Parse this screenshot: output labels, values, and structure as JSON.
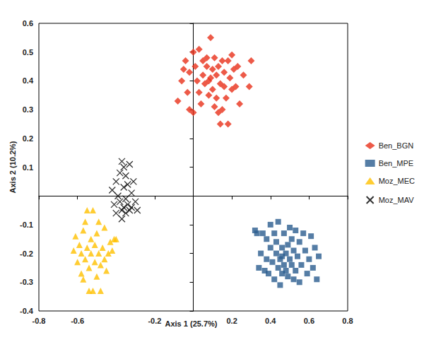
{
  "chart_data": {
    "type": "scatter",
    "xlabel": "Axis 1 (25.7%)",
    "ylabel": "Axis 2 (10.2%)",
    "xlim": [
      -0.8,
      0.8
    ],
    "ylim": [
      -0.4,
      0.6
    ],
    "xticks": [
      -0.8,
      -0.6,
      -0.2,
      0.2,
      0.4,
      0.6,
      0.8
    ],
    "yticks": [
      -0.4,
      -0.3,
      -0.2,
      -0.1,
      0.1,
      0.2,
      0.3,
      0.4,
      0.5,
      0.6
    ],
    "grid": false,
    "legend": "right",
    "series": [
      {
        "name": "Ben_BGN",
        "color": "#e8311a",
        "marker": "diamond",
        "values": [
          [
            -0.08,
            0.33
          ],
          [
            -0.06,
            0.4
          ],
          [
            -0.05,
            0.44
          ],
          [
            -0.04,
            0.47
          ],
          [
            -0.03,
            0.36
          ],
          [
            -0.02,
            0.3
          ],
          [
            -0.02,
            0.43
          ],
          [
            0.0,
            0.5
          ],
          [
            0.0,
            0.29
          ],
          [
            0.01,
            0.45
          ],
          [
            0.02,
            0.4
          ],
          [
            0.03,
            0.51
          ],
          [
            0.03,
            0.36
          ],
          [
            0.04,
            0.32
          ],
          [
            0.05,
            0.47
          ],
          [
            0.05,
            0.42
          ],
          [
            0.06,
            0.39
          ],
          [
            0.07,
            0.48
          ],
          [
            0.07,
            0.45
          ],
          [
            0.08,
            0.4
          ],
          [
            0.08,
            0.35
          ],
          [
            0.09,
            0.55
          ],
          [
            0.1,
            0.44
          ],
          [
            0.1,
            0.37
          ],
          [
            0.11,
            0.48
          ],
          [
            0.12,
            0.42
          ],
          [
            0.12,
            0.34
          ],
          [
            0.13,
            0.45
          ],
          [
            0.13,
            0.29
          ],
          [
            0.14,
            0.39
          ],
          [
            0.14,
            0.25
          ],
          [
            0.15,
            0.47
          ],
          [
            0.15,
            0.3
          ],
          [
            0.16,
            0.43
          ],
          [
            0.16,
            0.38
          ],
          [
            0.17,
            0.34
          ],
          [
            0.18,
            0.47
          ],
          [
            0.18,
            0.25
          ],
          [
            0.19,
            0.41
          ],
          [
            0.2,
            0.49
          ],
          [
            0.2,
            0.37
          ],
          [
            0.21,
            0.44
          ],
          [
            0.22,
            0.38
          ],
          [
            0.23,
            0.45
          ],
          [
            0.24,
            0.32
          ],
          [
            0.26,
            0.42
          ],
          [
            0.29,
            0.38
          ],
          [
            0.3,
            0.47
          ],
          [
            0.09,
            0.41
          ],
          [
            0.11,
            0.31
          ]
        ]
      },
      {
        "name": "Ben_MPE",
        "color": "#2a5d8f",
        "marker": "square",
        "values": [
          [
            0.32,
            -0.12
          ],
          [
            0.33,
            -0.13
          ],
          [
            0.34,
            -0.25
          ],
          [
            0.35,
            -0.2
          ],
          [
            0.36,
            -0.13
          ],
          [
            0.37,
            -0.26
          ],
          [
            0.38,
            -0.15
          ],
          [
            0.38,
            -0.22
          ],
          [
            0.39,
            -0.27
          ],
          [
            0.4,
            -0.1
          ],
          [
            0.4,
            -0.18
          ],
          [
            0.41,
            -0.23
          ],
          [
            0.42,
            -0.13
          ],
          [
            0.42,
            -0.29
          ],
          [
            0.43,
            -0.2
          ],
          [
            0.43,
            -0.16
          ],
          [
            0.44,
            -0.25
          ],
          [
            0.44,
            -0.09
          ],
          [
            0.45,
            -0.22
          ],
          [
            0.45,
            -0.31
          ],
          [
            0.46,
            -0.18
          ],
          [
            0.46,
            -0.27
          ],
          [
            0.47,
            -0.13
          ],
          [
            0.47,
            -0.24
          ],
          [
            0.48,
            -0.2
          ],
          [
            0.48,
            -0.26
          ],
          [
            0.49,
            -0.17
          ],
          [
            0.49,
            -0.28
          ],
          [
            0.5,
            -0.11
          ],
          [
            0.5,
            -0.22
          ],
          [
            0.51,
            -0.24
          ],
          [
            0.51,
            -0.15
          ],
          [
            0.52,
            -0.19
          ],
          [
            0.52,
            -0.29
          ],
          [
            0.53,
            -0.12
          ],
          [
            0.53,
            -0.26
          ],
          [
            0.54,
            -0.21
          ],
          [
            0.55,
            -0.16
          ],
          [
            0.55,
            -0.3
          ],
          [
            0.56,
            -0.24
          ],
          [
            0.57,
            -0.13
          ],
          [
            0.58,
            -0.19
          ],
          [
            0.59,
            -0.27
          ],
          [
            0.6,
            -0.22
          ],
          [
            0.61,
            -0.14
          ],
          [
            0.62,
            -0.25
          ],
          [
            0.63,
            -0.18
          ],
          [
            0.64,
            -0.29
          ],
          [
            0.65,
            -0.21
          ],
          [
            0.46,
            -0.21
          ]
        ]
      },
      {
        "name": "Moz_MEC",
        "color": "#ffc000",
        "marker": "triangle",
        "values": [
          [
            -0.62,
            -0.19
          ],
          [
            -0.61,
            -0.14
          ],
          [
            -0.6,
            -0.23
          ],
          [
            -0.59,
            -0.17
          ],
          [
            -0.58,
            -0.27
          ],
          [
            -0.58,
            -0.2
          ],
          [
            -0.57,
            -0.12
          ],
          [
            -0.57,
            -0.29
          ],
          [
            -0.56,
            -0.09
          ],
          [
            -0.56,
            -0.22
          ],
          [
            -0.55,
            -0.05
          ],
          [
            -0.55,
            -0.18
          ],
          [
            -0.54,
            -0.25
          ],
          [
            -0.54,
            -0.33
          ],
          [
            -0.53,
            -0.15
          ],
          [
            -0.53,
            -0.2
          ],
          [
            -0.52,
            -0.05
          ],
          [
            -0.52,
            -0.33
          ],
          [
            -0.51,
            -0.23
          ],
          [
            -0.51,
            -0.17
          ],
          [
            -0.5,
            -0.13
          ],
          [
            -0.5,
            -0.28
          ],
          [
            -0.49,
            -0.2
          ],
          [
            -0.49,
            -0.09
          ],
          [
            -0.48,
            -0.24
          ],
          [
            -0.48,
            -0.33
          ],
          [
            -0.47,
            -0.18
          ],
          [
            -0.46,
            -0.22
          ],
          [
            -0.46,
            -0.11
          ],
          [
            -0.45,
            -0.26
          ],
          [
            -0.44,
            -0.2
          ],
          [
            -0.43,
            -0.16
          ],
          [
            -0.42,
            -0.19
          ],
          [
            -0.41,
            -0.15
          ],
          [
            -0.4,
            -0.15
          ]
        ]
      },
      {
        "name": "Moz_MAV",
        "color": "#000000",
        "marker": "x",
        "values": [
          [
            -0.42,
            0.02
          ],
          [
            -0.41,
            -0.03
          ],
          [
            -0.4,
            0.05
          ],
          [
            -0.4,
            -0.06
          ],
          [
            -0.39,
            0.0
          ],
          [
            -0.38,
            -0.02
          ],
          [
            -0.38,
            0.08
          ],
          [
            -0.37,
            -0.05
          ],
          [
            -0.37,
            -0.08
          ],
          [
            -0.36,
            0.03
          ],
          [
            -0.36,
            -0.04
          ],
          [
            -0.36,
            0.1
          ],
          [
            -0.35,
            -0.01
          ],
          [
            -0.35,
            -0.06
          ],
          [
            -0.34,
            0.04
          ],
          [
            -0.34,
            -0.03
          ],
          [
            -0.33,
            0.11
          ],
          [
            -0.33,
            -0.05
          ],
          [
            -0.32,
            0.01
          ],
          [
            -0.32,
            -0.04
          ],
          [
            -0.31,
            0.05
          ],
          [
            -0.3,
            -0.02
          ],
          [
            -0.29,
            -0.05
          ],
          [
            -0.37,
            0.12
          ],
          [
            -0.35,
            0.07
          ]
        ]
      }
    ]
  }
}
